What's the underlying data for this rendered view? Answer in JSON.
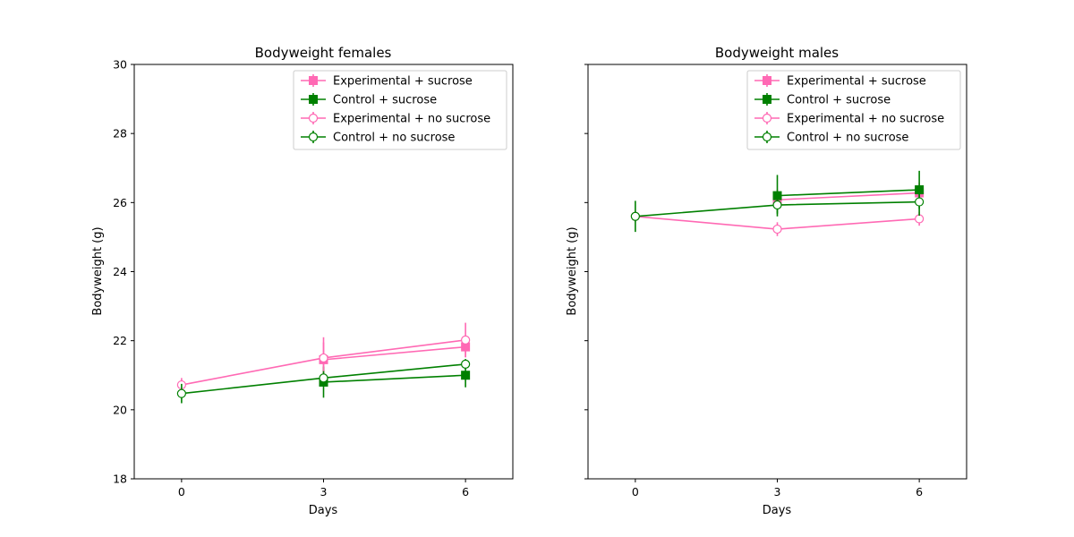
{
  "colors": {
    "experimental": "#ff69b4",
    "control": "#008000"
  },
  "chart_data": [
    {
      "type": "line",
      "title": "Bodyweight females",
      "xlabel": "Days",
      "ylabel": "Bodyweight (g)",
      "x": [
        0,
        3,
        6
      ],
      "xticks": [
        "0",
        "3",
        "6"
      ],
      "xlim": [
        -1,
        7
      ],
      "ylim": [
        18,
        30
      ],
      "yticks": [
        "18",
        "20",
        "22",
        "24",
        "26",
        "28",
        "30"
      ],
      "legend_position": "top-right",
      "series": [
        {
          "name": "Experimental + sucrose",
          "color": "#ff69b4",
          "marker": "square",
          "filled": true,
          "x": [
            3,
            6
          ],
          "values": [
            21.45,
            21.82
          ],
          "err": [
            0.5,
            0.3
          ]
        },
        {
          "name": "Control + sucrose",
          "color": "#008000",
          "marker": "square",
          "filled": true,
          "x": [
            3,
            6
          ],
          "values": [
            20.8,
            21.0
          ],
          "err": [
            0.45,
            0.35
          ]
        },
        {
          "name": "Experimental + no sucrose",
          "color": "#ff69b4",
          "marker": "circle",
          "filled": false,
          "x": [
            0,
            3,
            6
          ],
          "values": [
            20.72,
            21.5,
            22.02
          ],
          "err": [
            0.2,
            0.6,
            0.5
          ]
        },
        {
          "name": "Control + no sucrose",
          "color": "#008000",
          "marker": "circle",
          "filled": false,
          "x": [
            0,
            3,
            6
          ],
          "values": [
            20.47,
            20.92,
            21.32
          ],
          "err": [
            0.28,
            0.2,
            0.15
          ]
        }
      ]
    },
    {
      "type": "line",
      "title": "Bodyweight males",
      "xlabel": "Days",
      "ylabel": "Bodyweight (g)",
      "x": [
        0,
        3,
        6
      ],
      "xticks": [
        "0",
        "3",
        "6"
      ],
      "xlim": [
        -1,
        7
      ],
      "ylim": [
        18,
        30
      ],
      "yticks": [],
      "legend_position": "top-right",
      "series": [
        {
          "name": "Experimental + sucrose",
          "color": "#ff69b4",
          "marker": "square",
          "filled": true,
          "x": [
            3,
            6
          ],
          "values": [
            26.08,
            26.28
          ],
          "err": [
            0.3,
            0.3
          ]
        },
        {
          "name": "Control + sucrose",
          "color": "#008000",
          "marker": "square",
          "filled": true,
          "x": [
            3,
            6
          ],
          "values": [
            26.2,
            26.37
          ],
          "err": [
            0.6,
            0.55
          ]
        },
        {
          "name": "Experimental + no sucrose",
          "color": "#ff69b4",
          "marker": "circle",
          "filled": false,
          "x": [
            0,
            3,
            6
          ],
          "values": [
            25.6,
            25.23,
            25.53
          ],
          "err": [
            0.15,
            0.2,
            0.2
          ]
        },
        {
          "name": "Control + no sucrose",
          "color": "#008000",
          "marker": "circle",
          "filled": false,
          "x": [
            0,
            3,
            6
          ],
          "values": [
            25.6,
            25.93,
            26.02
          ],
          "err": [
            0.45,
            0.25,
            0.4
          ]
        }
      ]
    }
  ]
}
